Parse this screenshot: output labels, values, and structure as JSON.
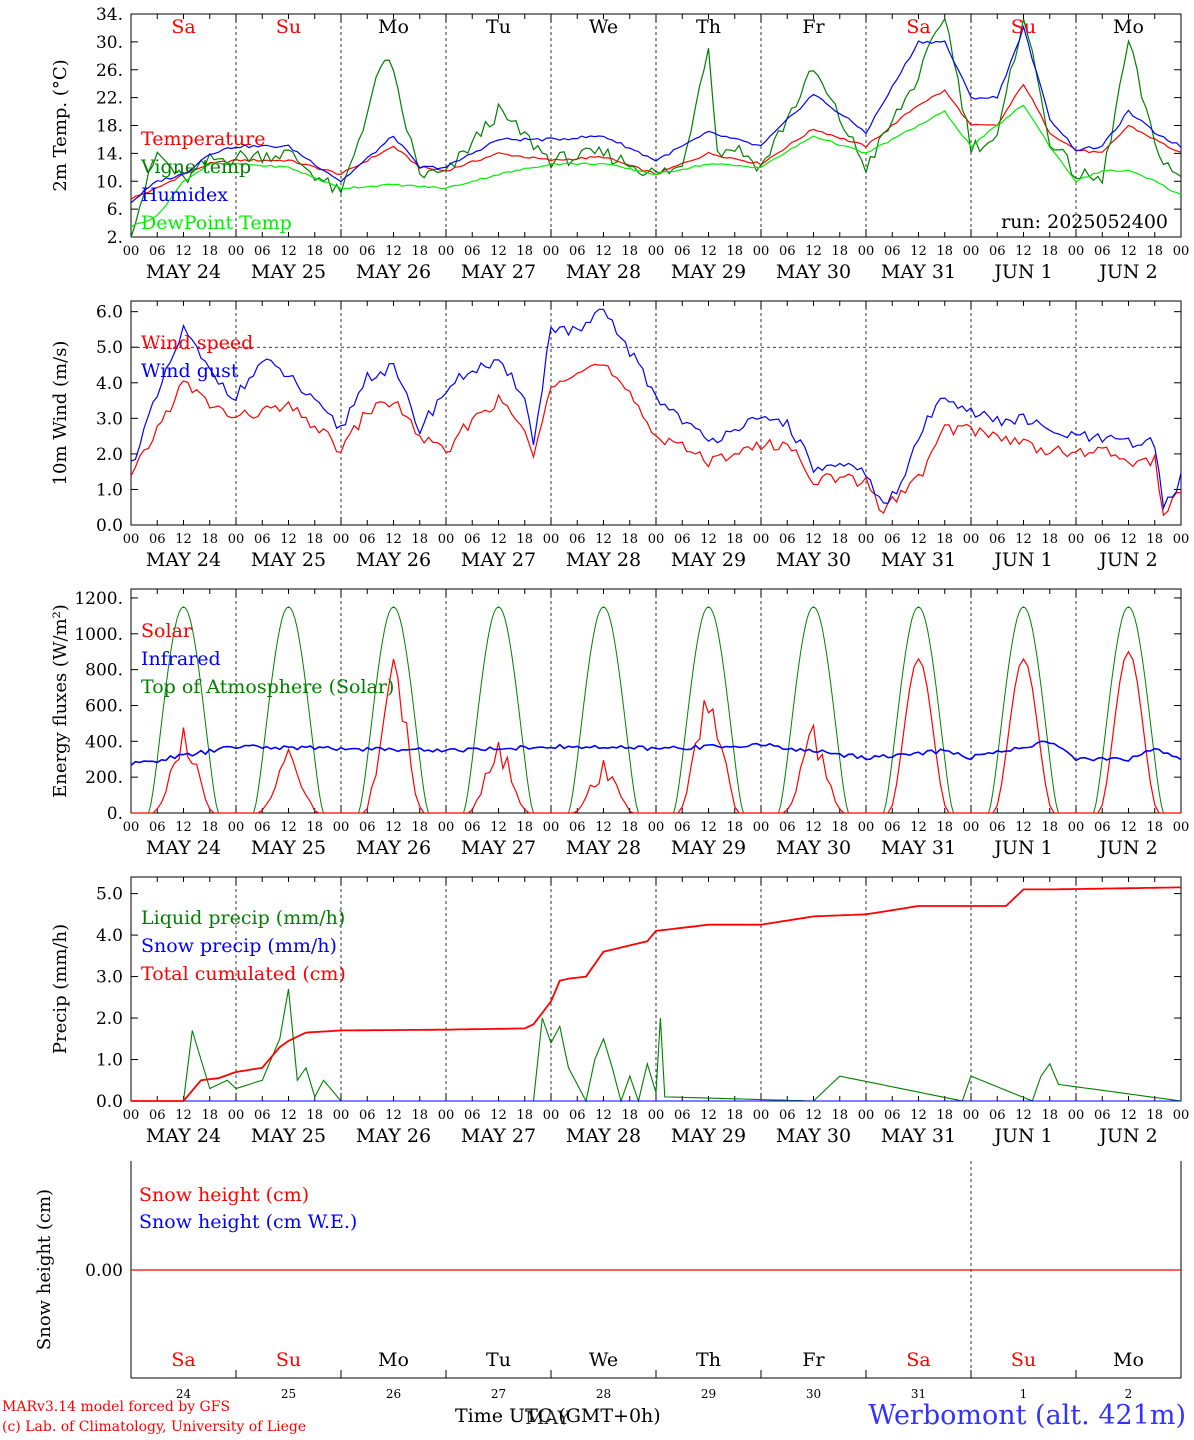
{
  "run_label": "run: 2025052400",
  "x_axis_title": "Time UTC (GMT+0h)",
  "x_axis_title_overlay": "MAY",
  "credit": {
    "line1": "MARv3.14 model forced by GFS",
    "line2": "(c) Lab. of Climatology, University of Liege"
  },
  "station": "Werbomont (alt. 421m)",
  "hour_ticks": [
    "00",
    "06",
    "12",
    "18"
  ],
  "day_labels": [
    "MAY 24",
    "MAY 25",
    "MAY 26",
    "MAY 27",
    "MAY 28",
    "MAY 29",
    "MAY 30",
    "MAY 31",
    "JUN  1",
    "JUN  2"
  ],
  "weekdays": [
    "Sa",
    "Su",
    "Mo",
    "Tu",
    "We",
    "Th",
    "Fr",
    "Sa",
    "Su",
    "Mo"
  ],
  "day_numbers": [
    "24",
    "25",
    "26",
    "27",
    "28",
    "29",
    "30",
    "31",
    "1",
    "2"
  ],
  "weekend_color": "#ff0000",
  "weekday_color": "#000000",
  "chart_data": [
    {
      "type": "line",
      "ylabel": "2m Temp. (°C)",
      "ylim": [
        2,
        34
      ],
      "yticks": [
        "2.",
        "6.",
        "10.",
        "14.",
        "18.",
        "22.",
        "26.",
        "30.",
        "34."
      ],
      "x_unit": "hours since MAY 24 00 UTC",
      "series": [
        {
          "name": "Temperature",
          "color": "#ff0000",
          "x": [
            0,
            6,
            12,
            18,
            24,
            36,
            48,
            60,
            66,
            72,
            84,
            96,
            108,
            120,
            132,
            144,
            156,
            168,
            180,
            186,
            192,
            198,
            204,
            210,
            216,
            222,
            228,
            234,
            240
          ],
          "values": [
            7.5,
            9,
            11,
            12.5,
            13,
            13,
            11,
            15,
            12,
            11.5,
            14,
            13,
            13.5,
            11,
            14,
            12.5,
            17.5,
            15,
            21,
            23,
            18,
            18,
            24,
            17,
            14.5,
            14,
            18,
            16,
            14
          ]
        },
        {
          "name": "Vigne temp",
          "color": "#008000",
          "x": [
            0,
            6,
            12,
            18,
            24,
            36,
            48,
            58,
            60,
            62,
            66,
            72,
            84,
            96,
            108,
            120,
            126,
            132,
            134,
            138,
            144,
            156,
            168,
            180,
            186,
            192,
            198,
            204,
            210,
            216,
            222,
            228,
            234,
            240
          ],
          "values": [
            3,
            14,
            10,
            13,
            13.5,
            14,
            8,
            28,
            25,
            20,
            11,
            11,
            20,
            13,
            14,
            11,
            12,
            30,
            14,
            15,
            12,
            26,
            12,
            25,
            34,
            15,
            16,
            34,
            16,
            11,
            10,
            30,
            15,
            10
          ]
        },
        {
          "name": "Humidex",
          "color": "#0000ff",
          "x": [
            0,
            6,
            12,
            18,
            24,
            36,
            48,
            60,
            66,
            72,
            84,
            96,
            108,
            120,
            132,
            144,
            156,
            168,
            180,
            186,
            192,
            198,
            204,
            210,
            216,
            222,
            228,
            234,
            240
          ],
          "values": [
            7,
            10,
            11,
            14,
            15,
            15,
            10,
            16.5,
            12,
            12,
            16,
            16,
            16.5,
            13,
            17,
            15,
            22.5,
            17,
            30,
            30,
            22,
            22,
            32,
            19,
            14.5,
            15,
            20,
            17,
            15
          ]
        },
        {
          "name": "DewPoint Temp",
          "color": "#00ee00",
          "x": [
            0,
            6,
            12,
            18,
            24,
            36,
            48,
            60,
            72,
            84,
            96,
            108,
            120,
            132,
            144,
            156,
            168,
            180,
            186,
            192,
            204,
            210,
            216,
            222,
            228,
            234,
            240
          ],
          "values": [
            3.5,
            5,
            10,
            12.5,
            12.5,
            12,
            9,
            9.5,
            9,
            11,
            12.5,
            12.5,
            11,
            12.5,
            12,
            16.5,
            14,
            18,
            20,
            15,
            21,
            15,
            10,
            11.5,
            11.5,
            10,
            8
          ]
        }
      ]
    },
    {
      "type": "line",
      "ylabel": "10m Wind (m/s)",
      "ylim": [
        0,
        6.3
      ],
      "yticks": [
        "0.0",
        "1.0",
        "2.0",
        "3.0",
        "4.0",
        "5.0",
        "6.0"
      ],
      "dashed_line": 5.0,
      "series": [
        {
          "name": "Wind speed",
          "color": "#ff0000",
          "x": [
            0,
            6,
            12,
            18,
            24,
            30,
            36,
            42,
            48,
            54,
            60,
            66,
            72,
            78,
            84,
            90,
            92,
            96,
            102,
            108,
            114,
            120,
            126,
            132,
            138,
            144,
            150,
            156,
            162,
            168,
            172,
            176,
            180,
            186,
            192,
            198,
            204,
            210,
            216,
            222,
            228,
            234,
            236,
            240
          ],
          "values": [
            1.3,
            2.7,
            4.0,
            3.4,
            3.0,
            3.2,
            3.3,
            2.8,
            2.1,
            3.2,
            3.5,
            2.5,
            2.0,
            3.0,
            3.5,
            2.7,
            1.8,
            4.0,
            4.4,
            4.5,
            3.6,
            2.5,
            2.3,
            1.7,
            2.1,
            2.2,
            2.3,
            1.3,
            1.3,
            1.2,
            0.4,
            0.9,
            1.3,
            2.7,
            2.7,
            2.5,
            2.3,
            2.1,
            2.0,
            2.1,
            1.8,
            1.8,
            0.3,
            1.0
          ]
        },
        {
          "name": "Wind gust",
          "color": "#0000ff",
          "x": [
            0,
            6,
            12,
            18,
            24,
            30,
            36,
            42,
            48,
            54,
            60,
            66,
            72,
            78,
            84,
            90,
            92,
            96,
            102,
            108,
            114,
            120,
            126,
            132,
            138,
            144,
            150,
            156,
            162,
            168,
            172,
            176,
            180,
            186,
            192,
            198,
            204,
            210,
            216,
            222,
            228,
            234,
            236,
            240
          ],
          "values": [
            1.7,
            3.6,
            5.5,
            4.3,
            3.6,
            4.6,
            4.2,
            3.4,
            2.7,
            4.2,
            4.4,
            2.7,
            3.8,
            4.4,
            4.5,
            3.7,
            2.2,
            5.6,
            5.4,
            6.0,
            4.9,
            3.6,
            3.0,
            2.3,
            2.8,
            2.9,
            2.9,
            1.6,
            1.6,
            1.5,
            0.5,
            1.1,
            2.5,
            3.7,
            3.2,
            2.9,
            3.0,
            2.6,
            2.5,
            2.4,
            2.3,
            2.3,
            0.5,
            1.3
          ]
        }
      ]
    },
    {
      "type": "line",
      "ylabel": "Energy fluxes (W/m²)",
      "ylim": [
        0,
        1250
      ],
      "yticks": [
        "0.",
        "200.",
        "400.",
        "600.",
        "800.",
        "1000.",
        "1200."
      ],
      "series": [
        {
          "name": "Solar",
          "color": "#ff0000",
          "daily_peaks": [
            510,
            370,
            870,
            400,
            300,
            860,
            490,
            860,
            860,
            900
          ]
        },
        {
          "name": "Infrared",
          "color": "#0000ff",
          "x": [
            0,
            24,
            48,
            72,
            96,
            120,
            144,
            168,
            180,
            186,
            192,
            210,
            216,
            228,
            234,
            240
          ],
          "values": [
            270,
            370,
            360,
            350,
            370,
            360,
            380,
            310,
            330,
            350,
            310,
            400,
            300,
            300,
            360,
            300
          ]
        },
        {
          "name": "Top of Atmosphere (Solar)",
          "color": "#008000",
          "peak": 1150
        }
      ]
    },
    {
      "type": "line",
      "ylabel": "Precip (mm/h)",
      "ylim": [
        0,
        5.4
      ],
      "yticks": [
        "0.0",
        "1.0",
        "2.0",
        "3.0",
        "4.0",
        "5.0"
      ],
      "series": [
        {
          "name": "Liquid precip (mm/h)",
          "color": "#008000",
          "x": [
            0,
            12,
            14,
            16,
            18,
            22,
            24,
            30,
            34,
            36,
            38,
            40,
            42,
            44,
            48,
            92,
            94,
            96,
            98,
            100,
            104,
            106,
            108,
            110,
            112,
            114,
            116,
            118,
            120,
            121,
            122,
            156,
            162,
            190,
            192,
            206,
            208,
            210,
            212,
            240
          ],
          "values": [
            0,
            0,
            1.7,
            1.0,
            0.3,
            0.5,
            0.3,
            0.5,
            1.5,
            2.7,
            0.5,
            0.8,
            0.1,
            0.5,
            0,
            0,
            2.0,
            1.4,
            1.8,
            0.8,
            0,
            1.0,
            1.5,
            0.8,
            0,
            0.6,
            0,
            0.9,
            0.2,
            2.0,
            0.1,
            0,
            0.6,
            0,
            0.6,
            0,
            0.6,
            0.9,
            0.4,
            0
          ]
        },
        {
          "name": "Snow precip (mm/h)",
          "color": "#0000ff",
          "x": [
            0,
            240
          ],
          "values": [
            0,
            0
          ]
        },
        {
          "name": "Total cumulated (cm)",
          "color": "#ff0000",
          "x": [
            0,
            12,
            16,
            20,
            24,
            30,
            34,
            36,
            40,
            48,
            72,
            90,
            92,
            96,
            98,
            100,
            104,
            108,
            112,
            118,
            120,
            124,
            132,
            144,
            156,
            168,
            180,
            192,
            200,
            204,
            210,
            240
          ],
          "values": [
            0,
            0,
            0.5,
            0.55,
            0.7,
            0.8,
            1.3,
            1.45,
            1.65,
            1.7,
            1.72,
            1.75,
            1.85,
            2.4,
            2.9,
            2.95,
            3.0,
            3.6,
            3.7,
            3.85,
            4.1,
            4.15,
            4.25,
            4.25,
            4.45,
            4.5,
            4.7,
            4.7,
            4.7,
            5.1,
            5.1,
            5.15
          ]
        }
      ]
    },
    {
      "type": "line",
      "ylabel": "Snow height (cm)",
      "ytick": "0.00",
      "series": [
        {
          "name": "Snow height (cm)",
          "color": "#ff0000",
          "x": [
            0,
            240
          ],
          "values": [
            0,
            0
          ]
        },
        {
          "name": "Snow height (cm W.E.)",
          "color": "#0000ff",
          "x": [
            0,
            240
          ],
          "values": [
            0,
            0
          ]
        }
      ]
    }
  ]
}
